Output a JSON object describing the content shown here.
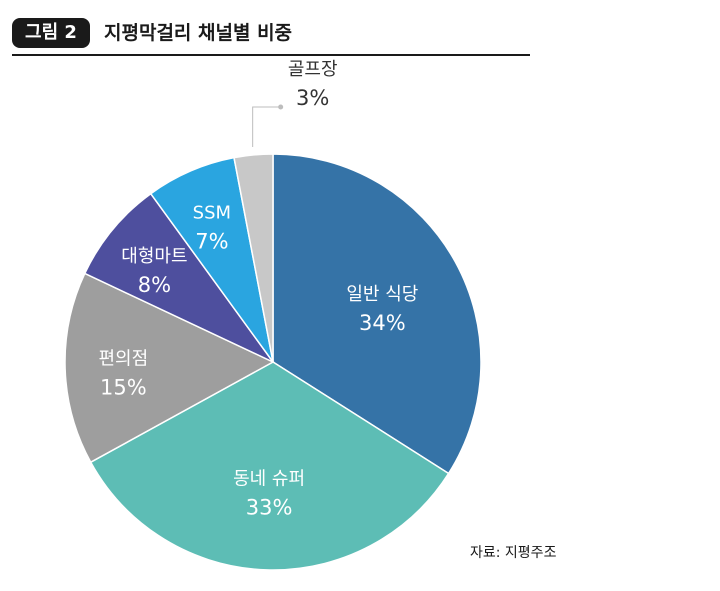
{
  "figure": {
    "badge": "그림 2",
    "title": "지평막걸리 채널별 비중"
  },
  "chart_data": {
    "type": "pie",
    "unit": "%",
    "slices": [
      {
        "label": "일반 식당",
        "value": 34,
        "display": "34%",
        "color": "#3573a7",
        "text_color": "#ffffff"
      },
      {
        "label": "동네 슈퍼",
        "value": 33,
        "display": "33%",
        "color": "#5dbdb5",
        "text_color": "#ffffff"
      },
      {
        "label": "편의점",
        "value": 15,
        "display": "15%",
        "color": "#9e9e9e",
        "text_color": "#ffffff"
      },
      {
        "label": "대형마트",
        "value": 8,
        "display": "8%",
        "color": "#4e4f9e",
        "text_color": "#ffffff"
      },
      {
        "label": "SSM",
        "value": 7,
        "display": "7%",
        "color": "#2aa5e0",
        "text_color": "#ffffff"
      },
      {
        "label": "골프장",
        "value": 3,
        "display": "3%",
        "color": "#c8c8c8",
        "text_color": "#333333",
        "outside": true
      }
    ]
  },
  "source": "자료: 지평주조"
}
